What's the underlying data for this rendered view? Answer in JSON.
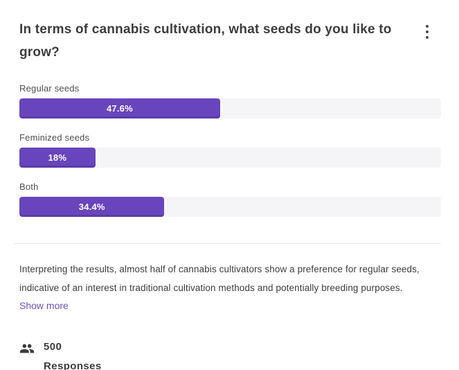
{
  "header": {
    "title": "In terms of cannabis cultivation, what seeds do you like to grow?"
  },
  "chart_data": {
    "type": "bar",
    "orientation": "horizontal",
    "categories": [
      "Regular seeds",
      "Feminized seeds",
      "Both"
    ],
    "values": [
      47.6,
      18,
      34.4
    ],
    "value_labels": [
      "47.6%",
      "18%",
      "34.4%"
    ],
    "xlim": [
      0,
      100
    ],
    "bar_color": "#6845bd",
    "track_color": "#f5f5f7",
    "value_label_position": "inside-center"
  },
  "summary": {
    "text": "Interpreting the results, almost half of cannabis cultivators show a preference for regular seeds, indicative of an interest in traditional cultivation methods and potentially breeding purposes.",
    "show_more_label": "Show more"
  },
  "footer": {
    "responses_count": "500",
    "responses_label": "Responses"
  },
  "colors": {
    "accent": "#6845bd",
    "track": "#f5f5f7",
    "link": "#6a4fc4",
    "text": "#3d3d3d",
    "divider": "#e9e9e9"
  }
}
